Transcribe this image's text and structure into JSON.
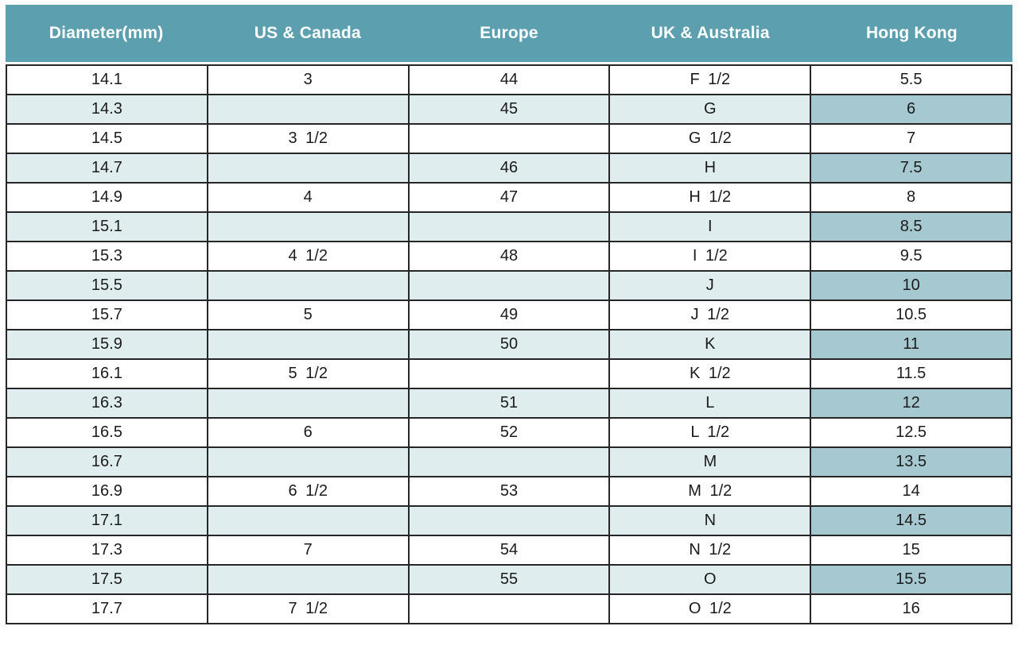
{
  "chart_data": {
    "type": "table",
    "description": "Ring size conversion table",
    "columns": [
      "Diameter(mm)",
      "US & Canada",
      "Europe",
      "UK & Australia",
      "Hong Kong"
    ],
    "rows": [
      [
        "14.1",
        "3",
        "44",
        "F 1/2",
        "5.5"
      ],
      [
        "14.3",
        "",
        "45",
        "G",
        "6"
      ],
      [
        "14.5",
        "3 1/2",
        "",
        "G 1/2",
        "7"
      ],
      [
        "14.7",
        "",
        "46",
        "H",
        "7.5"
      ],
      [
        "14.9",
        "4",
        "47",
        "H 1/2",
        "8"
      ],
      [
        "15.1",
        "",
        "",
        "I",
        "8.5"
      ],
      [
        "15.3",
        "4 1/2",
        "48",
        "I 1/2",
        "9.5"
      ],
      [
        "15.5",
        "",
        "",
        "J",
        "10"
      ],
      [
        "15.7",
        "5",
        "49",
        "J 1/2",
        "10.5"
      ],
      [
        "15.9",
        "",
        "50",
        "K",
        "11"
      ],
      [
        "16.1",
        "5 1/2",
        "",
        "K 1/2",
        "11.5"
      ],
      [
        "16.3",
        "",
        "51",
        "L",
        "12"
      ],
      [
        "16.5",
        "6",
        "52",
        "L 1/2",
        "12.5"
      ],
      [
        "16.7",
        "",
        "",
        "M",
        "13.5"
      ],
      [
        "16.9",
        "6 1/2",
        "53",
        "M 1/2",
        "14"
      ],
      [
        "17.1",
        "",
        "",
        "N",
        "14.5"
      ],
      [
        "17.3",
        "7",
        "54",
        "N 1/2",
        "15"
      ],
      [
        "17.5",
        "",
        "55",
        "O",
        "15.5"
      ],
      [
        "17.7",
        "7 1/2",
        "",
        "O 1/2",
        "16"
      ]
    ],
    "layout": {
      "striped_rows": "even rows (2nd, 4th, ...) highlighted",
      "highlight_column": "Hong Kong",
      "grid": true,
      "header_position": "top"
    }
  },
  "colors": {
    "header_bg": "#5c9fae",
    "header_text": "#ffffff",
    "stripe_bg": "#e0edee",
    "stripe_hong_kong_bg": "#a6c8d1",
    "row_bg": "#ffffff",
    "border": "#262626",
    "text": "#1b1b1b",
    "page_bg": "#ffffff"
  }
}
